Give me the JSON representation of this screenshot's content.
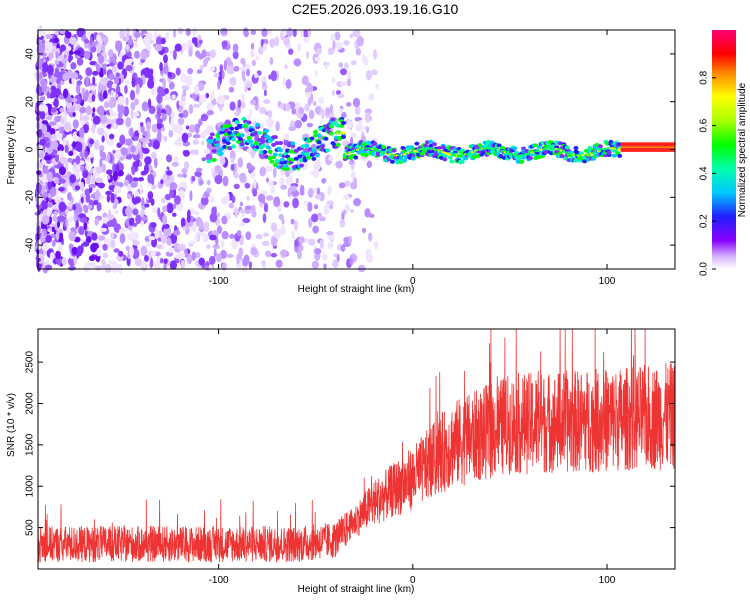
{
  "title": "C2E5.2026.093.19.16.G10",
  "chart_data": [
    {
      "type": "heatmap",
      "xlabel": "Height of straight line (km)",
      "ylabel": "Frequency (Hz)",
      "xlim": [
        -193,
        135
      ],
      "ylim": [
        -50,
        50
      ],
      "xticks": [
        -100,
        0,
        100
      ],
      "yticks": [
        -40,
        -20,
        0,
        20,
        40
      ],
      "colorbar": {
        "label": "Normalized spectral amplitude",
        "range": [
          0,
          1
        ],
        "ticks": [
          "0.0",
          "0.2",
          "0.4",
          "0.6",
          "0.8"
        ]
      }
    },
    {
      "type": "line",
      "xlabel": "Height of straight line (km)",
      "ylabel": "SNR (10 * v/v)",
      "xlim": [
        -193,
        135
      ],
      "ylim": [
        0,
        2900
      ],
      "xticks": [
        -100,
        0,
        100
      ],
      "yticks": [
        500,
        1000,
        1500,
        2000,
        2500
      ],
      "series_color": "#ee3333",
      "trend": [
        {
          "x": -193,
          "y": 300
        },
        {
          "x": -60,
          "y": 300
        },
        {
          "x": -40,
          "y": 350
        },
        {
          "x": -20,
          "y": 800
        },
        {
          "x": 0,
          "y": 1100
        },
        {
          "x": 20,
          "y": 1500
        },
        {
          "x": 50,
          "y": 1750
        },
        {
          "x": 100,
          "y": 1800
        },
        {
          "x": 135,
          "y": 1850
        }
      ]
    }
  ]
}
